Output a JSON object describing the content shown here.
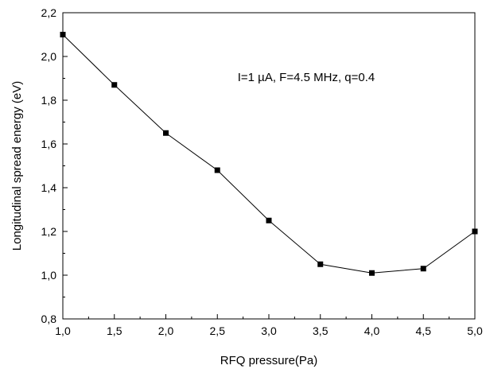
{
  "chart_data": {
    "type": "line",
    "xlabel": "RFQ pressure(Pa)",
    "ylabel": "Longitudinal spread energy (eV)",
    "annotation": "I=1 µA, F=4.5 MHz, q=0.4",
    "xlim": [
      1.0,
      5.0
    ],
    "ylim": [
      0.8,
      2.2
    ],
    "x_ticks": [
      1.0,
      1.5,
      2.0,
      2.5,
      3.0,
      3.5,
      4.0,
      4.5,
      5.0
    ],
    "y_ticks": [
      0.8,
      1.0,
      1.2,
      1.4,
      1.6,
      1.8,
      2.0,
      2.2
    ],
    "x_tick_labels": [
      "1,0",
      "1,5",
      "2,0",
      "2,5",
      "3,0",
      "3,5",
      "4,0",
      "4,5",
      "5,0"
    ],
    "y_tick_labels": [
      "0,8",
      "1,0",
      "1,2",
      "1,4",
      "1,6",
      "1,8",
      "2,0",
      "2,2"
    ],
    "grid": false,
    "series": [
      {
        "x": [
          1.0,
          1.5,
          2.0,
          2.5,
          3.0,
          3.5,
          4.0,
          4.5,
          5.0
        ],
        "values": [
          2.1,
          1.87,
          1.65,
          1.48,
          1.25,
          1.05,
          1.01,
          1.03,
          1.2
        ],
        "marker": "square",
        "color": "#000000"
      }
    ]
  }
}
